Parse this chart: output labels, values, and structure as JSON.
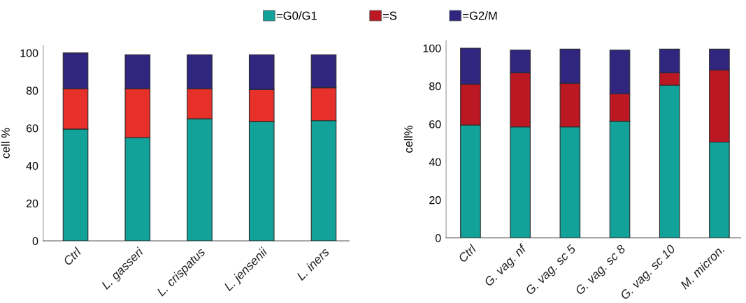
{
  "chart_data": [
    {
      "type": "bar",
      "stacked": true,
      "ylabel": "cell %",
      "categories": [
        "Ctrl",
        "L. gasseri",
        "L. crispatus",
        "L. jensenii",
        "L. iners"
      ],
      "series": [
        {
          "color": "#13a29a",
          "values": [
            59.5,
            55,
            65,
            63.5,
            64
          ]
        },
        {
          "color": "#e8302b",
          "values": [
            21.5,
            26,
            16,
            17,
            17.5
          ]
        },
        {
          "color": "#302680",
          "values": [
            19,
            18,
            18,
            18.5,
            17.5
          ]
        }
      ],
      "ylim": [
        0,
        104
      ],
      "yticks": [
        0,
        20,
        40,
        60,
        80,
        100
      ]
    },
    {
      "type": "bar",
      "stacked": true,
      "ylabel": "cell%",
      "legend": "top",
      "categories": [
        "Ctrl",
        "G. vag. nf",
        "G. vag. sc 5",
        "G. vag. sc 8",
        "G. vag. sc 10",
        "M. micron."
      ],
      "series": [
        {
          "name": "=G0/G1",
          "color": "#13a29a",
          "values": [
            59.5,
            58.5,
            58.5,
            61.5,
            80.5,
            50.5
          ]
        },
        {
          "name": "=S",
          "color": "#bc1823",
          "values": [
            21.5,
            28.5,
            23,
            14.5,
            6.5,
            38
          ]
        },
        {
          "name": "=G2/M",
          "color": "#302680",
          "values": [
            19,
            12,
            18,
            23,
            12.5,
            11
          ]
        }
      ],
      "ylim": [
        0,
        104
      ],
      "yticks": [
        0,
        20,
        40,
        60,
        80,
        100
      ]
    }
  ]
}
